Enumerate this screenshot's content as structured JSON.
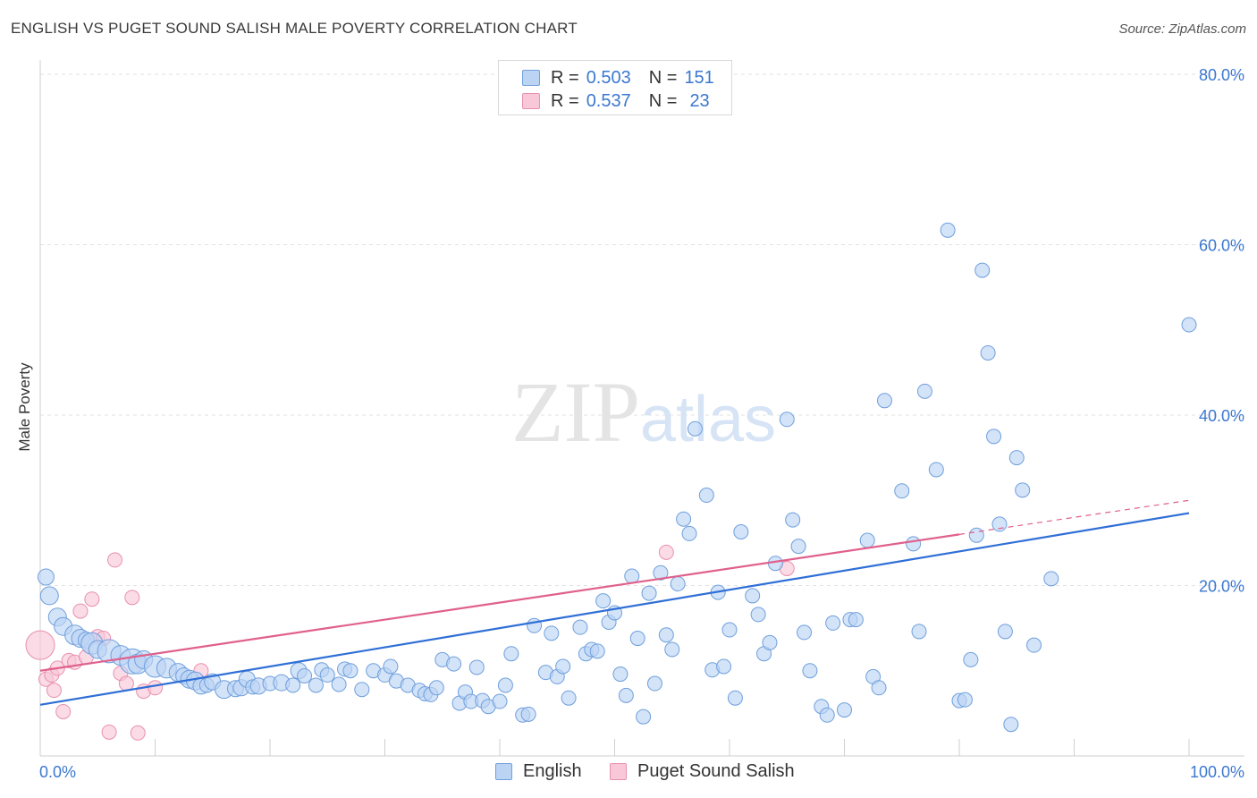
{
  "title": "ENGLISH VS PUGET SOUND SALISH MALE POVERTY CORRELATION CHART",
  "source": "Source: ZipAtlas.com",
  "watermark": {
    "bold": "ZIP",
    "light": "atlas"
  },
  "legend": {
    "rows": [
      {
        "name": "English",
        "r_label": "R =",
        "r_value": "0.503",
        "n_label": "N =",
        "n_value": "151",
        "color": "#6f9fdc"
      },
      {
        "name": "Puget Sound Salish",
        "r_label": "R =",
        "r_value": "0.537",
        "n_label": "N =",
        "n_value": "23",
        "color": "#e890ae"
      }
    ]
  },
  "chart_data": {
    "type": "scatter",
    "title": "ENGLISH VS PUGET SOUND SALISH MALE POVERTY CORRELATION CHART",
    "xlabel": "",
    "ylabel": "Male Poverty",
    "xlim": [
      0,
      100
    ],
    "ylim": [
      0,
      82
    ],
    "x_tick_labels": [
      "0.0%",
      "100.0%"
    ],
    "y_ticks": [
      20,
      40,
      60,
      80
    ],
    "y_tick_labels": [
      "20.0%",
      "40.0%",
      "60.0%",
      "80.0%"
    ],
    "grid": true,
    "legend_position": "top-center",
    "series": [
      {
        "name": "English",
        "color": "#6f9fdc",
        "fill": "#bcd4f4",
        "trend": {
          "x0": 0,
          "y0": 6.0,
          "x1": 100,
          "y1": 28.5
        },
        "points": [
          [
            0.5,
            21.0,
            9
          ],
          [
            0.8,
            18.8,
            10
          ],
          [
            1.5,
            16.3,
            10
          ],
          [
            2,
            15.2,
            10
          ],
          [
            3,
            14.2,
            11
          ],
          [
            3.5,
            13.8,
            10
          ],
          [
            4,
            13.6,
            9
          ],
          [
            4.5,
            13.2,
            12
          ],
          [
            5,
            12.5,
            10
          ],
          [
            6,
            12.3,
            13
          ],
          [
            7,
            11.8,
            11
          ],
          [
            8,
            11.1,
            14
          ],
          [
            8.5,
            10.8,
            11
          ],
          [
            9,
            11.3,
            10
          ],
          [
            10,
            10.5,
            12
          ],
          [
            11,
            10.3,
            11
          ],
          [
            12,
            9.8,
            10
          ],
          [
            12.5,
            9.4,
            9
          ],
          [
            13,
            9.0,
            10
          ],
          [
            13.5,
            8.8,
            10
          ],
          [
            14,
            8.2,
            9
          ],
          [
            14.5,
            8.3,
            8
          ],
          [
            15,
            8.7,
            9
          ],
          [
            16,
            7.8,
            10
          ],
          [
            17,
            7.9,
            9
          ],
          [
            17.5,
            8.0,
            9
          ],
          [
            18,
            9.0,
            9
          ],
          [
            18.5,
            8.1,
            8
          ],
          [
            19,
            8.2,
            9
          ],
          [
            20,
            8.5,
            8
          ],
          [
            21,
            8.6,
            9
          ],
          [
            22,
            8.3,
            8
          ],
          [
            22.5,
            10.0,
            9
          ],
          [
            23,
            9.4,
            8
          ],
          [
            24,
            8.3,
            8
          ],
          [
            24.5,
            10.1,
            8
          ],
          [
            25,
            9.5,
            8
          ],
          [
            26,
            8.4,
            8
          ],
          [
            26.5,
            10.2,
            8
          ],
          [
            27,
            10.0,
            8
          ],
          [
            28,
            7.8,
            8
          ],
          [
            29,
            10.0,
            8
          ],
          [
            30,
            9.5,
            8
          ],
          [
            30.5,
            10.5,
            8
          ],
          [
            31,
            8.8,
            8
          ],
          [
            32,
            8.3,
            8
          ],
          [
            33,
            7.7,
            8
          ],
          [
            33.5,
            7.3,
            8
          ],
          [
            34,
            7.2,
            8
          ],
          [
            34.5,
            8.0,
            8
          ],
          [
            35,
            11.3,
            8
          ],
          [
            36,
            10.8,
            8
          ],
          [
            36.5,
            6.2,
            8
          ],
          [
            37,
            7.5,
            8
          ],
          [
            37.5,
            6.4,
            8
          ],
          [
            38,
            10.4,
            8
          ],
          [
            38.5,
            6.5,
            8
          ],
          [
            39,
            5.8,
            8
          ],
          [
            40,
            6.4,
            8
          ],
          [
            40.5,
            8.3,
            8
          ],
          [
            41,
            12.0,
            8
          ],
          [
            42,
            4.8,
            8
          ],
          [
            42.5,
            4.9,
            8
          ],
          [
            43,
            15.3,
            8
          ],
          [
            44,
            9.8,
            8
          ],
          [
            44.5,
            14.4,
            8
          ],
          [
            45,
            9.3,
            8
          ],
          [
            45.5,
            10.5,
            8
          ],
          [
            46,
            6.8,
            8
          ],
          [
            47,
            15.1,
            8
          ],
          [
            47.5,
            12.0,
            8
          ],
          [
            48,
            12.5,
            8
          ],
          [
            48.5,
            12.3,
            8
          ],
          [
            49,
            18.2,
            8
          ],
          [
            49.5,
            15.7,
            8
          ],
          [
            50,
            16.8,
            8
          ],
          [
            50.5,
            9.6,
            8
          ],
          [
            51,
            7.1,
            8
          ],
          [
            51.5,
            21.1,
            8
          ],
          [
            52,
            13.8,
            8
          ],
          [
            52.5,
            4.6,
            8
          ],
          [
            53,
            19.1,
            8
          ],
          [
            53.5,
            8.5,
            8
          ],
          [
            54,
            21.5,
            8
          ],
          [
            54.5,
            14.2,
            8
          ],
          [
            55,
            12.5,
            8
          ],
          [
            55.5,
            20.2,
            8
          ],
          [
            56,
            27.8,
            8
          ],
          [
            56.5,
            26.1,
            8
          ],
          [
            57,
            38.4,
            8
          ],
          [
            58,
            30.6,
            8
          ],
          [
            58.5,
            10.1,
            8
          ],
          [
            59,
            19.2,
            8
          ],
          [
            59.5,
            10.5,
            8
          ],
          [
            60,
            14.8,
            8
          ],
          [
            60.5,
            6.8,
            8
          ],
          [
            61,
            26.3,
            8
          ],
          [
            62,
            18.8,
            8
          ],
          [
            62.5,
            16.6,
            8
          ],
          [
            63,
            12.0,
            8
          ],
          [
            63.5,
            13.3,
            8
          ],
          [
            64,
            22.6,
            8
          ],
          [
            65,
            39.5,
            8
          ],
          [
            65.5,
            27.7,
            8
          ],
          [
            66,
            24.6,
            8
          ],
          [
            66.5,
            14.5,
            8
          ],
          [
            67,
            10.0,
            8
          ],
          [
            68,
            5.8,
            8
          ],
          [
            68.5,
            4.8,
            8
          ],
          [
            69,
            15.6,
            8
          ],
          [
            70,
            5.4,
            8
          ],
          [
            70.5,
            16.0,
            8
          ],
          [
            71,
            16.0,
            8
          ],
          [
            72,
            25.3,
            8
          ],
          [
            72.5,
            9.3,
            8
          ],
          [
            73,
            8.0,
            8
          ],
          [
            73.5,
            41.7,
            8
          ],
          [
            75,
            31.1,
            8
          ],
          [
            76,
            24.9,
            8
          ],
          [
            76.5,
            14.6,
            8
          ],
          [
            77,
            42.8,
            8
          ],
          [
            78,
            33.6,
            8
          ],
          [
            79,
            61.7,
            8
          ],
          [
            80,
            6.5,
            8
          ],
          [
            80.5,
            6.6,
            8
          ],
          [
            81,
            11.3,
            8
          ],
          [
            81.5,
            25.9,
            8
          ],
          [
            82,
            57.0,
            8
          ],
          [
            82.5,
            47.3,
            8
          ],
          [
            83,
            37.5,
            8
          ],
          [
            83.5,
            27.2,
            8
          ],
          [
            84,
            14.6,
            8
          ],
          [
            84.5,
            3.7,
            8
          ],
          [
            85,
            35.0,
            8
          ],
          [
            85.5,
            31.2,
            8
          ],
          [
            86.5,
            13.0,
            8
          ],
          [
            88,
            20.8,
            8
          ],
          [
            100,
            50.6,
            8
          ]
        ]
      },
      {
        "name": "Puget Sound Salish",
        "color": "#e890ae",
        "fill": "#f8c8d8",
        "trend": {
          "x0": 0,
          "y0": 10.0,
          "x1": 80,
          "y1": 26.0,
          "dashed_to_x": 100,
          "dashed_to_y": 30.0
        },
        "points": [
          [
            0,
            13.0,
            16
          ],
          [
            0.5,
            9.0,
            8
          ],
          [
            1,
            9.5,
            8
          ],
          [
            1.2,
            7.7,
            8
          ],
          [
            1.5,
            10.3,
            8
          ],
          [
            2,
            5.2,
            8
          ],
          [
            2.5,
            11.2,
            8
          ],
          [
            3,
            11.0,
            8
          ],
          [
            3.5,
            17.0,
            8
          ],
          [
            4,
            11.6,
            8
          ],
          [
            4.5,
            18.4,
            8
          ],
          [
            5,
            14.0,
            8
          ],
          [
            5.5,
            13.8,
            8
          ],
          [
            6,
            2.8,
            8
          ],
          [
            6.5,
            23.0,
            8
          ],
          [
            7,
            9.7,
            8
          ],
          [
            7.5,
            8.5,
            8
          ],
          [
            8,
            18.6,
            8
          ],
          [
            8.5,
            2.7,
            8
          ],
          [
            9,
            7.6,
            8
          ],
          [
            10,
            8.0,
            8
          ],
          [
            14,
            10.0,
            8
          ],
          [
            54.5,
            23.9,
            8
          ],
          [
            65,
            22.0,
            8
          ]
        ]
      }
    ]
  }
}
